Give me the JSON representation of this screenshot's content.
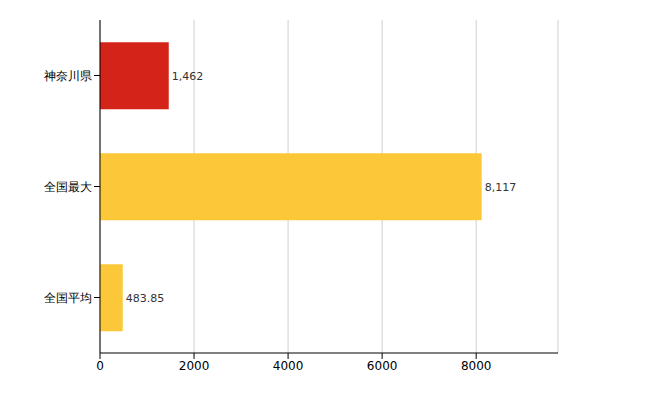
{
  "chart_data": {
    "type": "bar",
    "orientation": "horizontal",
    "categories": [
      "神奈川県",
      "全国最大",
      "全国平均"
    ],
    "values": [
      1462,
      8117,
      483.85
    ],
    "value_labels": [
      "1,462",
      "8,117",
      "483.85"
    ],
    "data_labels": true,
    "colors": [
      "#d42318",
      "#fcc839",
      "#fcc839"
    ],
    "xlim": [
      0,
      9740
    ],
    "xticks": [
      0,
      2000,
      4000,
      6000,
      8000
    ],
    "grid": true
  }
}
